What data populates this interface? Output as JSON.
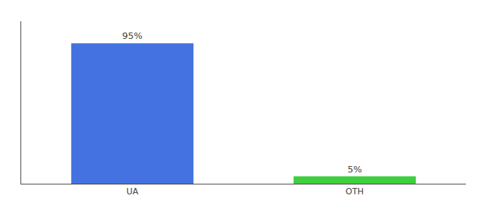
{
  "chart_data": {
    "type": "bar",
    "categories": [
      "UA",
      "OTH"
    ],
    "values": [
      95,
      5
    ],
    "value_labels": [
      "95%",
      "5%"
    ],
    "colors": [
      "#4472e0",
      "#3ecf3e"
    ],
    "ylim": [
      0,
      110
    ],
    "grid": false,
    "data_labels": true,
    "tick_labels": "x"
  }
}
